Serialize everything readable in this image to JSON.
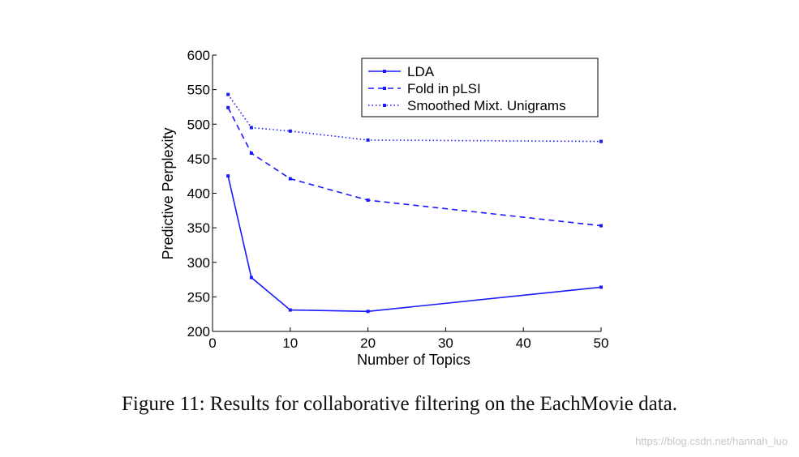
{
  "caption": "Figure 11: Results for collaborative filtering on the EachMovie data.",
  "watermark": "https://blog.csdn.net/hannah_luo",
  "chart_data": {
    "type": "line",
    "title": "",
    "xlabel": "Number of Topics",
    "ylabel": "Predictive Perplexity",
    "xlim": [
      0,
      50
    ],
    "ylim": [
      200,
      600
    ],
    "xticks": [
      0,
      10,
      20,
      30,
      40,
      50
    ],
    "yticks": [
      200,
      250,
      300,
      350,
      400,
      450,
      500,
      550,
      600
    ],
    "grid": false,
    "legend_position": "top-right",
    "series": [
      {
        "name": "LDA",
        "style": "solid",
        "color": "#1a1aff",
        "x": [
          2,
          5,
          10,
          20,
          50
        ],
        "y": [
          425,
          278,
          231,
          229,
          264
        ]
      },
      {
        "name": "Fold in pLSI",
        "style": "dashed",
        "color": "#1a1aff",
        "x": [
          2,
          5,
          10,
          20,
          50
        ],
        "y": [
          524,
          458,
          421,
          390,
          353
        ]
      },
      {
        "name": "Smoothed Mixt. Unigrams",
        "style": "dotted",
        "color": "#1a1aff",
        "x": [
          2,
          5,
          10,
          20,
          50
        ],
        "y": [
          543,
          495,
          490,
          477,
          475
        ]
      }
    ]
  }
}
